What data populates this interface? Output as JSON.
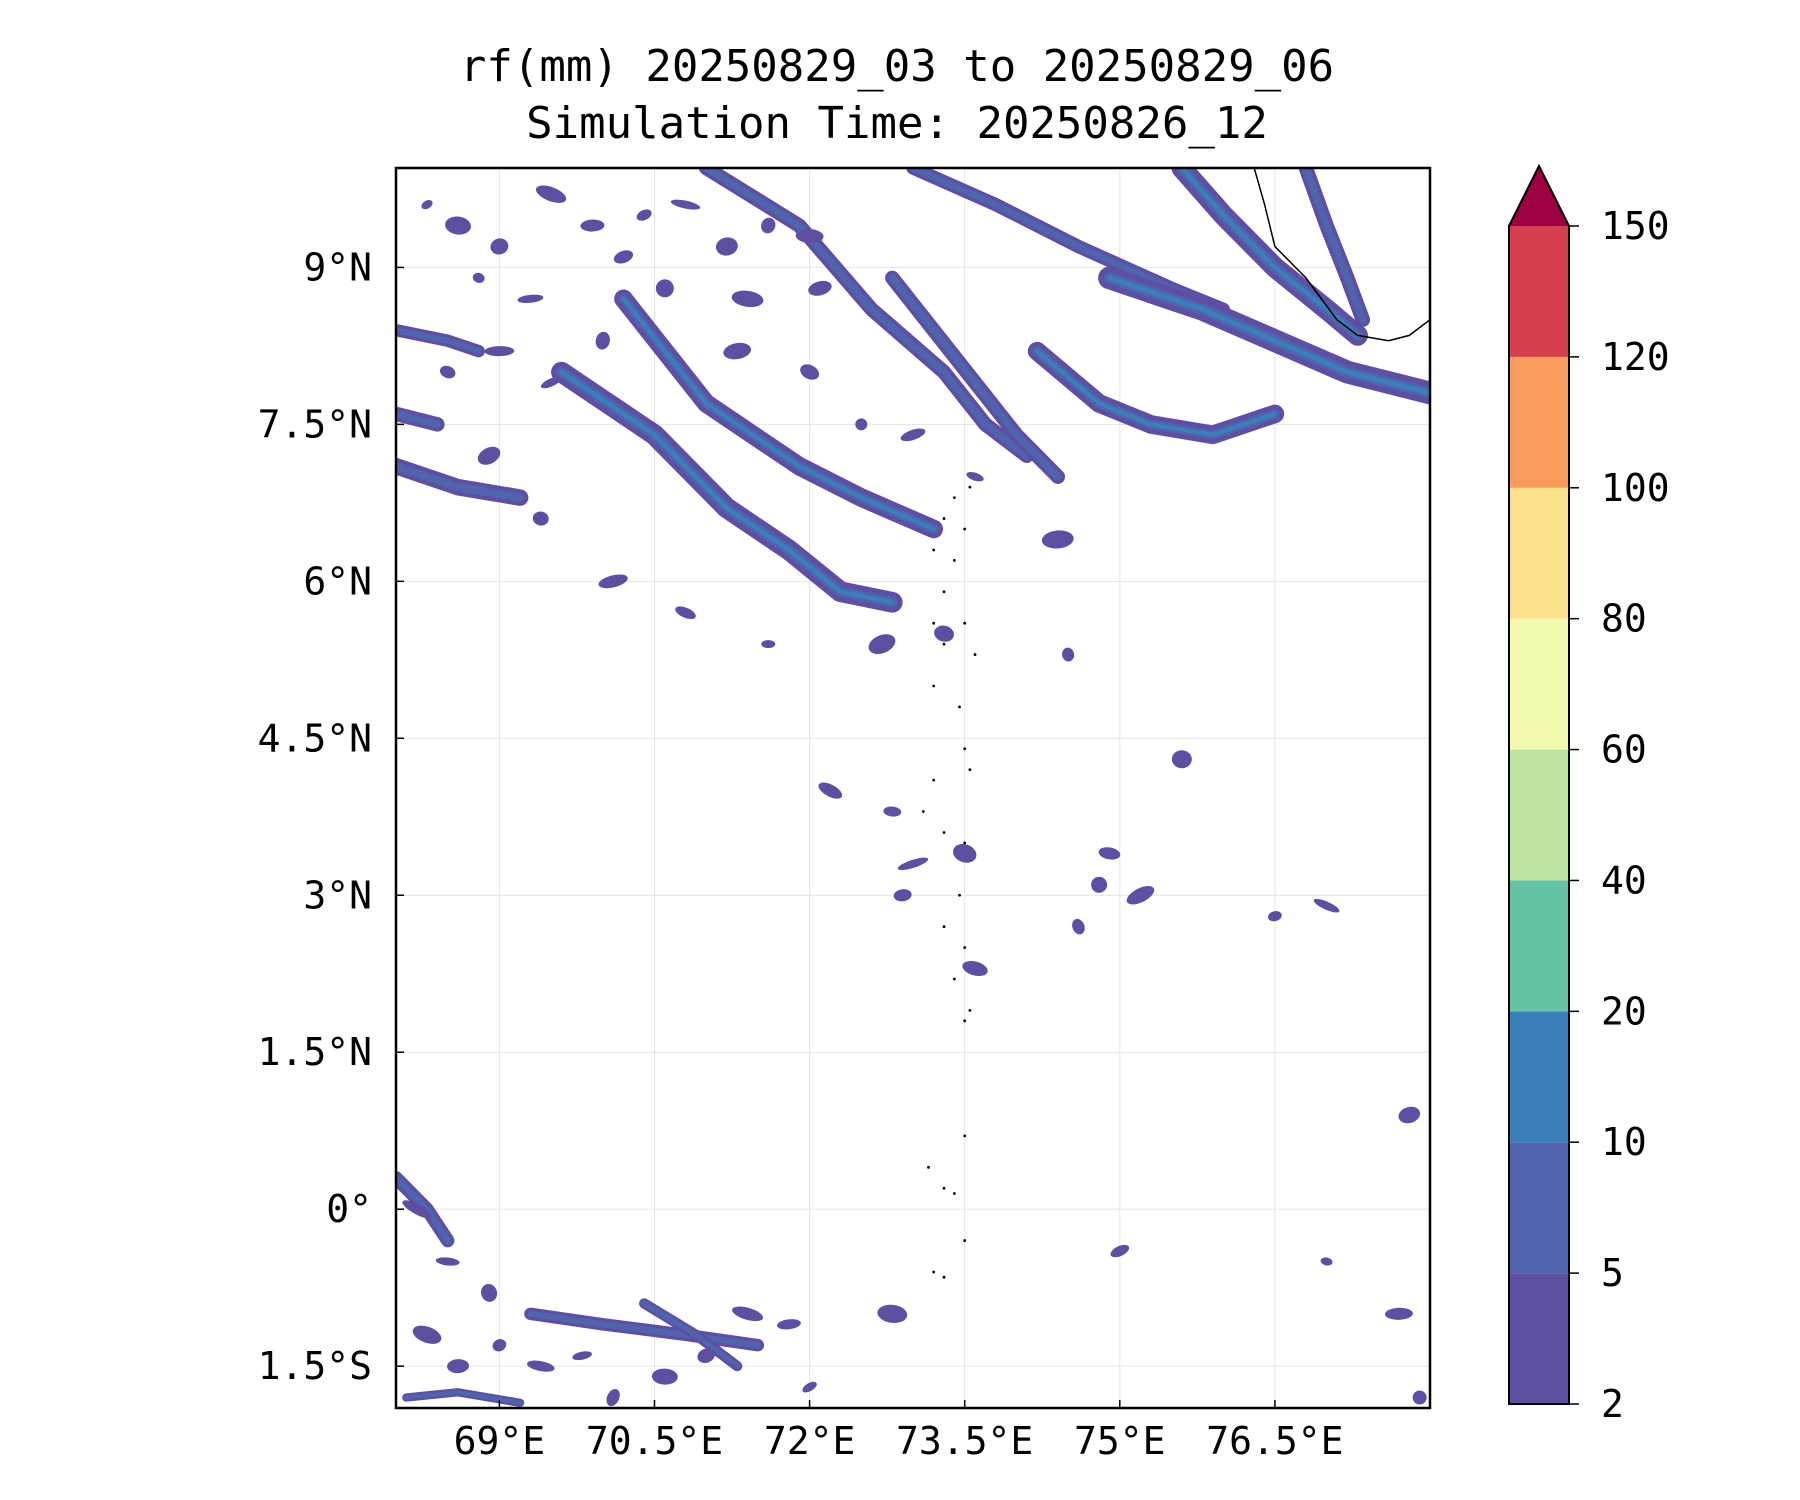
{
  "title": {
    "line1": "rf(mm) 20250829_03 to 20250829_06",
    "line2": "Simulation Time: 20250826_12"
  },
  "map": {
    "lon_range": [
      68.0,
      78.0
    ],
    "lat_range": [
      -1.9,
      9.95
    ],
    "x_ticks": [
      {
        "value": 69.0,
        "label": "69°E"
      },
      {
        "value": 70.5,
        "label": "70.5°E"
      },
      {
        "value": 72.0,
        "label": "72°E"
      },
      {
        "value": 73.5,
        "label": "73.5°E"
      },
      {
        "value": 75.0,
        "label": "75°E"
      },
      {
        "value": 76.5,
        "label": "76.5°E"
      }
    ],
    "y_ticks": [
      {
        "value": 9.0,
        "label": "9°N"
      },
      {
        "value": 7.5,
        "label": "7.5°N"
      },
      {
        "value": 6.0,
        "label": "6°N"
      },
      {
        "value": 4.5,
        "label": "4.5°N"
      },
      {
        "value": 3.0,
        "label": "3°N"
      },
      {
        "value": 1.5,
        "label": "1.5°N"
      },
      {
        "value": 0.0,
        "label": "0°"
      },
      {
        "value": -1.5,
        "label": "1.5°S"
      }
    ],
    "grid": true
  },
  "colorbar": {
    "levels": [
      "2",
      "5",
      "10",
      "20",
      "40",
      "60",
      "80",
      "100",
      "120",
      "150"
    ],
    "colors": [
      "#5e4fa2",
      "#4f64ad",
      "#3a7fb9",
      "#66c2a5",
      "#bde4a2",
      "#f3f9ae",
      "#fde08b",
      "#f99c5b",
      "#d53e4f"
    ],
    "extend_color": "#9e0142"
  },
  "rain_bands": [
    {
      "points": [
        [
          69.6,
          8.0
        ],
        [
          70.5,
          7.4
        ],
        [
          71.2,
          6.7
        ],
        [
          71.8,
          6.3
        ],
        [
          72.3,
          5.9
        ],
        [
          72.8,
          5.8
        ]
      ],
      "width": 0.2
    },
    {
      "points": [
        [
          70.2,
          8.7
        ],
        [
          71.0,
          7.7
        ],
        [
          71.9,
          7.1
        ],
        [
          72.5,
          6.8
        ],
        [
          73.2,
          6.5
        ]
      ],
      "width": 0.18
    },
    {
      "points": [
        [
          71.0,
          9.95
        ],
        [
          71.9,
          9.4
        ],
        [
          72.6,
          8.6
        ],
        [
          73.3,
          8.0
        ],
        [
          73.7,
          7.5
        ],
        [
          74.1,
          7.2
        ]
      ],
      "width": 0.14
    },
    {
      "points": [
        [
          72.8,
          8.9
        ],
        [
          73.2,
          8.4
        ],
        [
          73.6,
          7.9
        ],
        [
          74.0,
          7.4
        ],
        [
          74.4,
          7.0
        ]
      ],
      "width": 0.14
    },
    {
      "points": [
        [
          73.0,
          9.95
        ],
        [
          73.8,
          9.6
        ],
        [
          74.6,
          9.2
        ],
        [
          75.5,
          8.8
        ],
        [
          76.0,
          8.6
        ]
      ],
      "width": 0.13
    },
    {
      "points": [
        [
          74.2,
          8.2
        ],
        [
          74.8,
          7.7
        ],
        [
          75.3,
          7.5
        ],
        [
          75.9,
          7.4
        ],
        [
          76.5,
          7.6
        ]
      ],
      "width": 0.18
    },
    {
      "points": [
        [
          74.9,
          8.9
        ],
        [
          75.8,
          8.6
        ],
        [
          76.5,
          8.3
        ],
        [
          77.2,
          8.0
        ],
        [
          78.0,
          7.8
        ]
      ],
      "width": 0.22
    },
    {
      "points": [
        [
          75.6,
          9.95
        ],
        [
          76.0,
          9.5
        ],
        [
          76.5,
          9.0
        ],
        [
          77.0,
          8.6
        ],
        [
          77.3,
          8.35
        ]
      ],
      "width": 0.2
    },
    {
      "points": [
        [
          76.8,
          9.95
        ],
        [
          77.0,
          9.4
        ],
        [
          77.2,
          8.9
        ],
        [
          77.35,
          8.5
        ]
      ],
      "width": 0.14
    },
    {
      "points": [
        [
          68.0,
          7.1
        ],
        [
          68.6,
          6.9
        ],
        [
          69.2,
          6.8
        ]
      ],
      "width": 0.16
    },
    {
      "points": [
        [
          68.0,
          7.6
        ],
        [
          68.4,
          7.5
        ]
      ],
      "width": 0.14
    },
    {
      "points": [
        [
          68.0,
          8.4
        ],
        [
          68.5,
          8.3
        ],
        [
          68.8,
          8.2
        ]
      ],
      "width": 0.12
    },
    {
      "points": [
        [
          68.0,
          0.3
        ],
        [
          68.3,
          0.0
        ],
        [
          68.5,
          -0.3
        ]
      ],
      "width": 0.13
    },
    {
      "points": [
        [
          69.3,
          -1.0
        ],
        [
          70.0,
          -1.1
        ],
        [
          70.8,
          -1.2
        ],
        [
          71.5,
          -1.3
        ]
      ],
      "width": 0.12
    },
    {
      "points": [
        [
          70.4,
          -0.9
        ],
        [
          70.9,
          -1.2
        ],
        [
          71.3,
          -1.5
        ]
      ],
      "width": 0.1
    },
    {
      "points": [
        [
          68.1,
          -1.8
        ],
        [
          68.6,
          -1.75
        ],
        [
          69.2,
          -1.85
        ]
      ],
      "width": 0.08
    }
  ],
  "rain_spots": [
    [
      68.3,
      9.6
    ],
    [
      68.6,
      9.4
    ],
    [
      69.0,
      9.2
    ],
    [
      69.5,
      9.7
    ],
    [
      69.9,
      9.4
    ],
    [
      70.4,
      9.5
    ],
    [
      70.8,
      9.6
    ],
    [
      71.2,
      9.2
    ],
    [
      71.6,
      9.4
    ],
    [
      72.0,
      9.3
    ],
    [
      70.2,
      9.1
    ],
    [
      68.8,
      8.9
    ],
    [
      69.3,
      8.7
    ],
    [
      70.6,
      8.8
    ],
    [
      71.4,
      8.7
    ],
    [
      72.1,
      8.8
    ],
    [
      68.5,
      8.0
    ],
    [
      69.0,
      8.2
    ],
    [
      69.5,
      7.9
    ],
    [
      70.0,
      8.3
    ],
    [
      71.3,
      8.2
    ],
    [
      72.0,
      8.0
    ],
    [
      72.5,
      7.5
    ],
    [
      73.0,
      7.4
    ],
    [
      73.6,
      7.0
    ],
    [
      74.4,
      6.4
    ],
    [
      68.9,
      7.2
    ],
    [
      69.4,
      6.6
    ],
    [
      70.1,
      6.0
    ],
    [
      70.8,
      5.7
    ],
    [
      71.6,
      5.4
    ],
    [
      72.7,
      5.4
    ],
    [
      73.3,
      5.5
    ],
    [
      74.5,
      5.3
    ],
    [
      72.2,
      4.0
    ],
    [
      72.8,
      3.8
    ],
    [
      73.0,
      3.3
    ],
    [
      73.5,
      3.4
    ],
    [
      74.8,
      3.1
    ],
    [
      75.2,
      3.0
    ],
    [
      74.9,
      3.4
    ],
    [
      76.5,
      2.8
    ],
    [
      77.0,
      2.9
    ],
    [
      75.6,
      4.3
    ],
    [
      74.6,
      2.7
    ],
    [
      73.6,
      2.3
    ],
    [
      72.9,
      3.0
    ],
    [
      68.2,
      0.0
    ],
    [
      68.5,
      -0.5
    ],
    [
      68.9,
      -0.8
    ],
    [
      68.3,
      -1.2
    ],
    [
      68.6,
      -1.5
    ],
    [
      69.0,
      -1.3
    ],
    [
      69.4,
      -1.5
    ],
    [
      69.8,
      -1.4
    ],
    [
      70.1,
      -1.8
    ],
    [
      70.6,
      -1.6
    ],
    [
      71.0,
      -1.4
    ],
    [
      71.4,
      -1.0
    ],
    [
      71.8,
      -1.1
    ],
    [
      72.0,
      -1.7
    ],
    [
      72.8,
      -1.0
    ],
    [
      77.8,
      0.9
    ],
    [
      77.9,
      -1.8
    ],
    [
      77.7,
      -1.0
    ],
    [
      75.0,
      -0.4
    ],
    [
      77.0,
      -0.5
    ]
  ],
  "islands": [
    [
      73.55,
      6.9
    ],
    [
      73.4,
      6.8
    ],
    [
      73.3,
      6.6
    ],
    [
      73.5,
      6.5
    ],
    [
      73.2,
      6.3
    ],
    [
      73.4,
      6.2
    ],
    [
      73.3,
      5.9
    ],
    [
      73.2,
      5.6
    ],
    [
      73.3,
      5.4
    ],
    [
      73.5,
      5.6
    ],
    [
      73.6,
      5.3
    ],
    [
      73.2,
      5.0
    ],
    [
      73.45,
      4.8
    ],
    [
      73.5,
      4.4
    ],
    [
      73.55,
      4.2
    ],
    [
      73.2,
      4.1
    ],
    [
      73.1,
      3.8
    ],
    [
      73.3,
      3.6
    ],
    [
      73.5,
      3.5
    ],
    [
      73.45,
      3.0
    ],
    [
      73.3,
      2.7
    ],
    [
      73.5,
      2.5
    ],
    [
      73.4,
      2.2
    ],
    [
      73.55,
      1.9
    ],
    [
      73.5,
      1.8
    ],
    [
      73.15,
      0.4
    ],
    [
      73.3,
      0.2
    ],
    [
      73.4,
      0.15
    ],
    [
      73.5,
      0.7
    ],
    [
      73.2,
      -0.6
    ],
    [
      73.3,
      -0.65
    ],
    [
      73.5,
      -0.3
    ]
  ],
  "coastline": [
    [
      76.3,
      9.95
    ],
    [
      76.4,
      9.6
    ],
    [
      76.5,
      9.2
    ],
    [
      76.8,
      8.9
    ],
    [
      77.1,
      8.5
    ],
    [
      77.3,
      8.35
    ],
    [
      77.6,
      8.3
    ],
    [
      77.8,
      8.35
    ],
    [
      78.0,
      8.5
    ]
  ]
}
